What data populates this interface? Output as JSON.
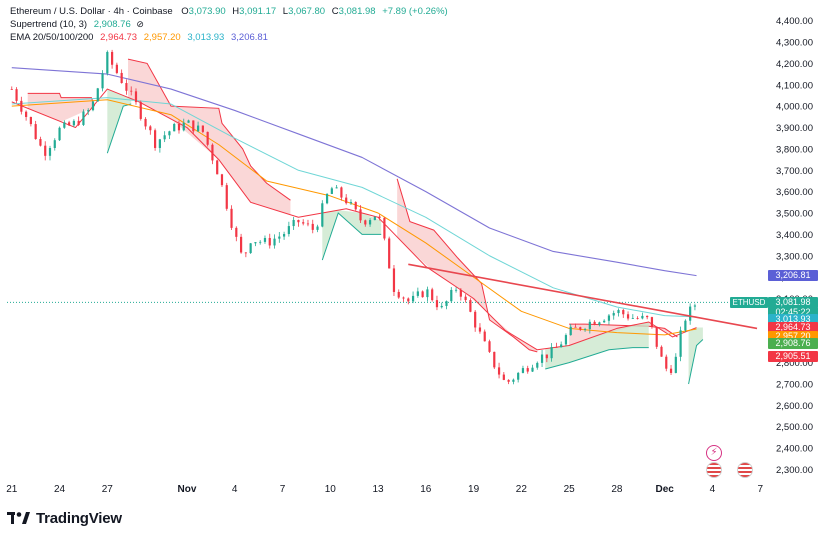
{
  "legend": {
    "title": "Ethereum / U.S. Dollar · 4h · Coinbase",
    "ohlc": [
      {
        "k": "O",
        "v": "3,073.90"
      },
      {
        "k": "H",
        "v": "3,091.17"
      },
      {
        "k": "L",
        "v": "3,067.80"
      },
      {
        "k": "C",
        "v": "3,081.98"
      }
    ],
    "change": "+7.89 (+0.26%)",
    "supertrend_label": "Supertrend (10, 3)",
    "supertrend_value": "2,908.76",
    "ema_label": "EMA 20/50/100/200",
    "ema_values": [
      "2,964.73",
      "2,957.20",
      "3,013.93",
      "3,206.81"
    ]
  },
  "colors": {
    "up": "#22ab94",
    "down": "#f23645",
    "ema20": "#f23645",
    "ema50": "#ff9800",
    "ema100": "#6fd6d6",
    "ema200": "#7e74d6",
    "trendline": "#e8474f",
    "st_up_fill": "#c8e6c9",
    "st_down_fill": "#f8c9c9"
  },
  "price_tags": [
    {
      "label": "3,206.81",
      "price": 3206.81,
      "color": "#5b5fd6"
    },
    {
      "label": "3,081.98",
      "price": 3081.98,
      "color": "#22ab94"
    },
    {
      "label": "02:45:22",
      "price": 3035.0,
      "color": "#22ab94"
    },
    {
      "label": "3,013.93",
      "price": 3003.0,
      "color": "#2bb3c9"
    },
    {
      "label": "2,964.73",
      "price": 2964.73,
      "color": "#f23645"
    },
    {
      "label": "2,957.20",
      "price": 2923.0,
      "color": "#ff9800"
    },
    {
      "label": "2,908.76",
      "price": 2888.0,
      "color": "#4caf50"
    },
    {
      "label": "2,905.51",
      "price": 2828.0,
      "color": "#f23645"
    }
  ],
  "symbol_tag": "ETHUSD",
  "brand": "TradingView",
  "chart_data": {
    "type": "candlestick",
    "symbol": "ETHUSD",
    "timeframe": "4h",
    "exchange": "Coinbase",
    "y_ticks": [
      2300,
      2400,
      2500,
      2600,
      2700,
      2800,
      2900,
      3000,
      3100,
      3200,
      3300,
      3400,
      3500,
      3600,
      3700,
      3800,
      3900,
      4000,
      4100,
      4200,
      4300,
      4400
    ],
    "y_tick_labels": [
      "2,300.00",
      "2,400.00",
      "2,500.00",
      "2,600.00",
      "2,700.00",
      "2,800.00",
      "2,900.00",
      "3,000.00",
      "3,100.00",
      "3,200.00",
      "3,300.00",
      "3,400.00",
      "3,500.00",
      "3,600.00",
      "3,700.00",
      "3,800.00",
      "3,900.00",
      "4,000.00",
      "4,100.00",
      "4,200.00",
      "4,300.00",
      "4,400.00"
    ],
    "x_ticks": [
      {
        "label": "21",
        "t": 0
      },
      {
        "label": "24",
        "t": 3
      },
      {
        "label": "27",
        "t": 6
      },
      {
        "label": "Nov",
        "t": 11
      },
      {
        "label": "4",
        "t": 14
      },
      {
        "label": "7",
        "t": 17
      },
      {
        "label": "10",
        "t": 20
      },
      {
        "label": "13",
        "t": 23
      },
      {
        "label": "16",
        "t": 26
      },
      {
        "label": "19",
        "t": 29
      },
      {
        "label": "22",
        "t": 32
      },
      {
        "label": "25",
        "t": 35
      },
      {
        "label": "28",
        "t": 38
      },
      {
        "label": "Dec",
        "t": 41
      },
      {
        "label": "4",
        "t": 44
      },
      {
        "label": "7",
        "t": 47
      }
    ],
    "x_range_days": [
      -0.3,
      47.3
    ],
    "ylim": [
      2260,
      4450
    ],
    "candle_path": [
      {
        "t": 0.0,
        "p": 4080
      },
      {
        "t": 1.0,
        "p": 3940
      },
      {
        "t": 2.0,
        "p": 3780
      },
      {
        "t": 3.0,
        "p": 3890
      },
      {
        "t": 4.0,
        "p": 3920
      },
      {
        "t": 5.0,
        "p": 3990
      },
      {
        "t": 6.0,
        "p": 4230
      },
      {
        "t": 7.0,
        "p": 4110
      },
      {
        "t": 8.0,
        "p": 3980
      },
      {
        "t": 9.0,
        "p": 3830
      },
      {
        "t": 10.0,
        "p": 3890
      },
      {
        "t": 11.0,
        "p": 3920
      },
      {
        "t": 12.0,
        "p": 3880
      },
      {
        "t": 13.0,
        "p": 3680
      },
      {
        "t": 14.0,
        "p": 3400
      },
      {
        "t": 14.5,
        "p": 3280
      },
      {
        "t": 15.0,
        "p": 3380
      },
      {
        "t": 16.0,
        "p": 3360
      },
      {
        "t": 17.0,
        "p": 3400
      },
      {
        "t": 18.0,
        "p": 3460
      },
      {
        "t": 19.0,
        "p": 3420
      },
      {
        "t": 20.0,
        "p": 3620
      },
      {
        "t": 21.0,
        "p": 3560
      },
      {
        "t": 22.0,
        "p": 3460
      },
      {
        "t": 23.0,
        "p": 3500
      },
      {
        "t": 24.0,
        "p": 3150
      },
      {
        "t": 25.0,
        "p": 3080
      },
      {
        "t": 26.0,
        "p": 3140
      },
      {
        "t": 27.0,
        "p": 3050
      },
      {
        "t": 28.0,
        "p": 3160
      },
      {
        "t": 29.0,
        "p": 3000
      },
      {
        "t": 30.0,
        "p": 2830
      },
      {
        "t": 31.0,
        "p": 2700
      },
      {
        "t": 32.0,
        "p": 2760
      },
      {
        "t": 33.0,
        "p": 2820
      },
      {
        "t": 34.0,
        "p": 2850
      },
      {
        "t": 35.0,
        "p": 2940
      },
      {
        "t": 36.0,
        "p": 2980
      },
      {
        "t": 37.0,
        "p": 3010
      },
      {
        "t": 38.0,
        "p": 3040
      },
      {
        "t": 39.0,
        "p": 3010
      },
      {
        "t": 40.0,
        "p": 3000
      },
      {
        "t": 41.0,
        "p": 2770
      },
      {
        "t": 41.6,
        "p": 2780
      },
      {
        "t": 42.2,
        "p": 3000
      },
      {
        "t": 43.0,
        "p": 3081.98
      }
    ],
    "series": [
      {
        "name": "EMA 20",
        "last": 2964.73,
        "points": [
          [
            0,
            4020
          ],
          [
            4,
            3900
          ],
          [
            6,
            4080
          ],
          [
            8,
            4020
          ],
          [
            11,
            3900
          ],
          [
            13,
            3750
          ],
          [
            15,
            3550
          ],
          [
            18,
            3480
          ],
          [
            21,
            3520
          ],
          [
            23,
            3480
          ],
          [
            26,
            3250
          ],
          [
            29,
            3100
          ],
          [
            31,
            2950
          ],
          [
            33,
            2860
          ],
          [
            35,
            2880
          ],
          [
            38,
            2960
          ],
          [
            40,
            2990
          ],
          [
            41.5,
            2920
          ],
          [
            43,
            2964
          ]
        ]
      },
      {
        "name": "EMA 50",
        "last": 2957.2,
        "points": [
          [
            0,
            4000
          ],
          [
            6,
            4030
          ],
          [
            10,
            3960
          ],
          [
            13,
            3820
          ],
          [
            16,
            3650
          ],
          [
            20,
            3580
          ],
          [
            23,
            3500
          ],
          [
            26,
            3360
          ],
          [
            29,
            3200
          ],
          [
            32,
            3040
          ],
          [
            35,
            2960
          ],
          [
            38,
            2940
          ],
          [
            41,
            2930
          ],
          [
            43,
            2957
          ]
        ]
      },
      {
        "name": "EMA 100",
        "last": 3013.93,
        "points": [
          [
            0,
            4010
          ],
          [
            6,
            4040
          ],
          [
            10,
            4010
          ],
          [
            14,
            3850
          ],
          [
            18,
            3700
          ],
          [
            22,
            3620
          ],
          [
            26,
            3480
          ],
          [
            30,
            3300
          ],
          [
            34,
            3150
          ],
          [
            38,
            3060
          ],
          [
            41,
            3020
          ],
          [
            43,
            3014
          ]
        ]
      },
      {
        "name": "EMA 200",
        "last": 3206.81,
        "points": [
          [
            0,
            4180
          ],
          [
            6,
            4150
          ],
          [
            10,
            4080
          ],
          [
            14,
            3980
          ],
          [
            18,
            3870
          ],
          [
            22,
            3760
          ],
          [
            26,
            3600
          ],
          [
            30,
            3430
          ],
          [
            34,
            3320
          ],
          [
            38,
            3270
          ],
          [
            41,
            3230
          ],
          [
            43,
            3207
          ]
        ]
      },
      {
        "name": "Trendline",
        "points": [
          [
            24.9,
            3260
          ],
          [
            46.8,
            2960
          ]
        ]
      }
    ],
    "supertrend": {
      "last": 2908.76,
      "down_segments": [
        [
          [
            1.0,
            4060
          ],
          [
            3.0,
            4060
          ],
          [
            3.1,
            4040
          ],
          [
            5.0,
            4040
          ],
          [
            5.2,
            4000
          ]
        ],
        [
          [
            7.3,
            4220
          ],
          [
            8.5,
            4200
          ],
          [
            10.0,
            4000
          ],
          [
            13.0,
            3990
          ],
          [
            13.2,
            3920
          ],
          [
            14.5,
            3800
          ],
          [
            15.0,
            3720
          ],
          [
            16.0,
            3640
          ],
          [
            17.5,
            3560
          ]
        ],
        [
          [
            24.2,
            3660
          ],
          [
            25.0,
            3460
          ],
          [
            26.5,
            3420
          ],
          [
            28.0,
            3290
          ],
          [
            29.5,
            3170
          ],
          [
            30.0,
            3000
          ],
          [
            31.5,
            2920
          ],
          [
            32.5,
            2860
          ],
          [
            33.0,
            2850
          ]
        ],
        [
          [
            35.0,
            2980
          ],
          [
            36.0,
            2980
          ],
          [
            40.0,
            2970
          ],
          [
            41.0,
            2960
          ],
          [
            41.8,
            2920
          ]
        ]
      ],
      "up_segments": [
        [
          [
            6.0,
            3780
          ],
          [
            7.0,
            4000
          ],
          [
            7.5,
            4010
          ]
        ],
        [
          [
            19.5,
            3280
          ],
          [
            20.5,
            3500
          ],
          [
            22.0,
            3400
          ],
          [
            23.2,
            3400
          ]
        ],
        [
          [
            33.5,
            2770
          ],
          [
            35.0,
            2800
          ],
          [
            37.5,
            2860
          ],
          [
            39.0,
            2870
          ],
          [
            40.0,
            2870
          ]
        ],
        [
          [
            42.5,
            2700
          ],
          [
            43.0,
            2880
          ],
          [
            43.4,
            2908
          ]
        ]
      ]
    },
    "last_price": 3081.98
  }
}
